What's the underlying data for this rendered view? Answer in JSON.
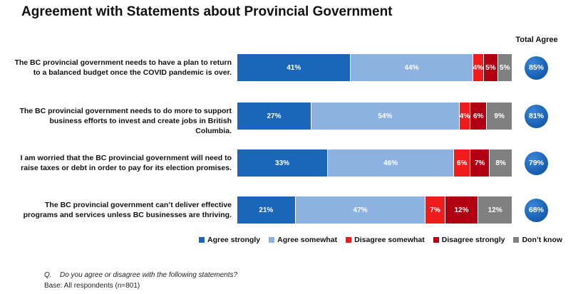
{
  "chart_data": {
    "type": "bar",
    "orientation": "horizontal",
    "stacked": true,
    "title": "Agreement with Statements about Provincial Government",
    "total_header": "Total Agree",
    "series": [
      {
        "name": "Agree strongly",
        "color": "#1a66b8"
      },
      {
        "name": "Agree somewhat",
        "color": "#8db1e0"
      },
      {
        "name": "Disagree somewhat",
        "color": "#ee1c1c"
      },
      {
        "name": "Disagree strongly",
        "color": "#b00012"
      },
      {
        "name": "Don’t know",
        "color": "#808080"
      }
    ],
    "rows": [
      {
        "statement": [
          "The BC provincial government needs to have a plan to return",
          "to a balanced budget once the COVID pandemic is over."
        ],
        "values": [
          41,
          44,
          4,
          5,
          5
        ],
        "labels": [
          "41%",
          "44%",
          "4%",
          "5%",
          "5%"
        ],
        "total": "85%"
      },
      {
        "statement": [
          "The BC provincial government needs to do more to support",
          "business efforts to invest and create jobs in British Columbia."
        ],
        "values": [
          27,
          54,
          4,
          6,
          9
        ],
        "labels": [
          "27%",
          "54%",
          "4%",
          "6%",
          "9%"
        ],
        "total": "81%"
      },
      {
        "statement": [
          "I am worried that the BC provincial government will need to",
          "raise taxes or debt in order to pay for its election promises."
        ],
        "values": [
          33,
          46,
          6,
          7,
          8
        ],
        "labels": [
          "33%",
          "46%",
          "6%",
          "7%",
          "8%"
        ],
        "total": "79%"
      },
      {
        "statement": [
          "The BC provincial government can’t deliver effective",
          "programs and services unless BC businesses are thriving."
        ],
        "values": [
          21,
          47,
          7,
          12,
          12
        ],
        "labels": [
          "21%",
          "47%",
          "7%",
          "12%",
          "12%"
        ],
        "total": "68%"
      }
    ]
  },
  "footnote": {
    "q_label": "Q.",
    "question": "Do you agree or disagree with the following statements?",
    "base": "Base: All respondents (n=801)"
  }
}
